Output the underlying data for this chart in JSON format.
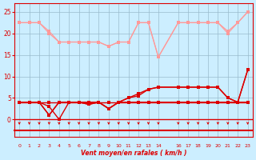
{
  "x": [
    0,
    1,
    2,
    3,
    4,
    5,
    6,
    7,
    8,
    9,
    10,
    11,
    12,
    13,
    14,
    16,
    17,
    18,
    19,
    20,
    21,
    22,
    23
  ],
  "upper1": [
    22.5,
    22.5,
    22.5,
    20.5,
    18,
    18,
    18,
    18,
    18,
    17,
    18,
    18,
    22.5,
    22.5,
    14.5,
    22.5,
    22.5,
    22.5,
    22.5,
    22.5,
    20.5,
    22.5,
    25
  ],
  "upper2": [
    22.5,
    22.5,
    22.5,
    20,
    18,
    18,
    18,
    18,
    18,
    17,
    18,
    18,
    22.5,
    22.5,
    14.5,
    22.5,
    22.5,
    22.5,
    22.5,
    22.5,
    20,
    22.5,
    25
  ],
  "lower1": [
    4,
    4,
    4,
    4,
    4,
    4,
    4,
    4,
    4,
    4,
    4,
    4,
    4,
    4,
    4,
    4,
    4,
    4,
    4,
    4,
    4,
    4,
    4
  ],
  "lower2": [
    4,
    4,
    4,
    1,
    4,
    4,
    4,
    3.5,
    4,
    2.5,
    4,
    5,
    5.5,
    7,
    7.5,
    7.5,
    7.5,
    7.5,
    7.5,
    7.5,
    5,
    4,
    11.5
  ],
  "lower3": [
    4,
    4,
    4,
    1,
    4,
    4,
    4,
    3.5,
    4,
    2.5,
    4,
    5,
    6,
    7,
    7.5,
    7.5,
    7.5,
    7.5,
    7.5,
    7.5,
    5,
    4,
    11.5
  ],
  "lower4": [
    4,
    4,
    4,
    3,
    0,
    4,
    4,
    4,
    4,
    2.5,
    4,
    4,
    4,
    4,
    4,
    4,
    4,
    4,
    4,
    4,
    4,
    4,
    4
  ],
  "color_light": "#ff9999",
  "color_dark": "#dd0000",
  "bg_color": "#cceeff",
  "grid_color": "#99bbcc",
  "xlabel": "Vent moyen/en rafales ( km/h )",
  "yticks": [
    0,
    5,
    10,
    15,
    20,
    25
  ],
  "xtick_labels": [
    "0",
    "1",
    "2",
    "3",
    "4",
    "5",
    "6",
    "7",
    "8",
    "9",
    "10",
    "11",
    "12",
    "13",
    "14",
    "16",
    "17",
    "18",
    "19",
    "20",
    "21",
    "22",
    "23"
  ],
  "ymin": -4,
  "ymax": 27,
  "xmin": -0.5,
  "xmax": 23.5
}
